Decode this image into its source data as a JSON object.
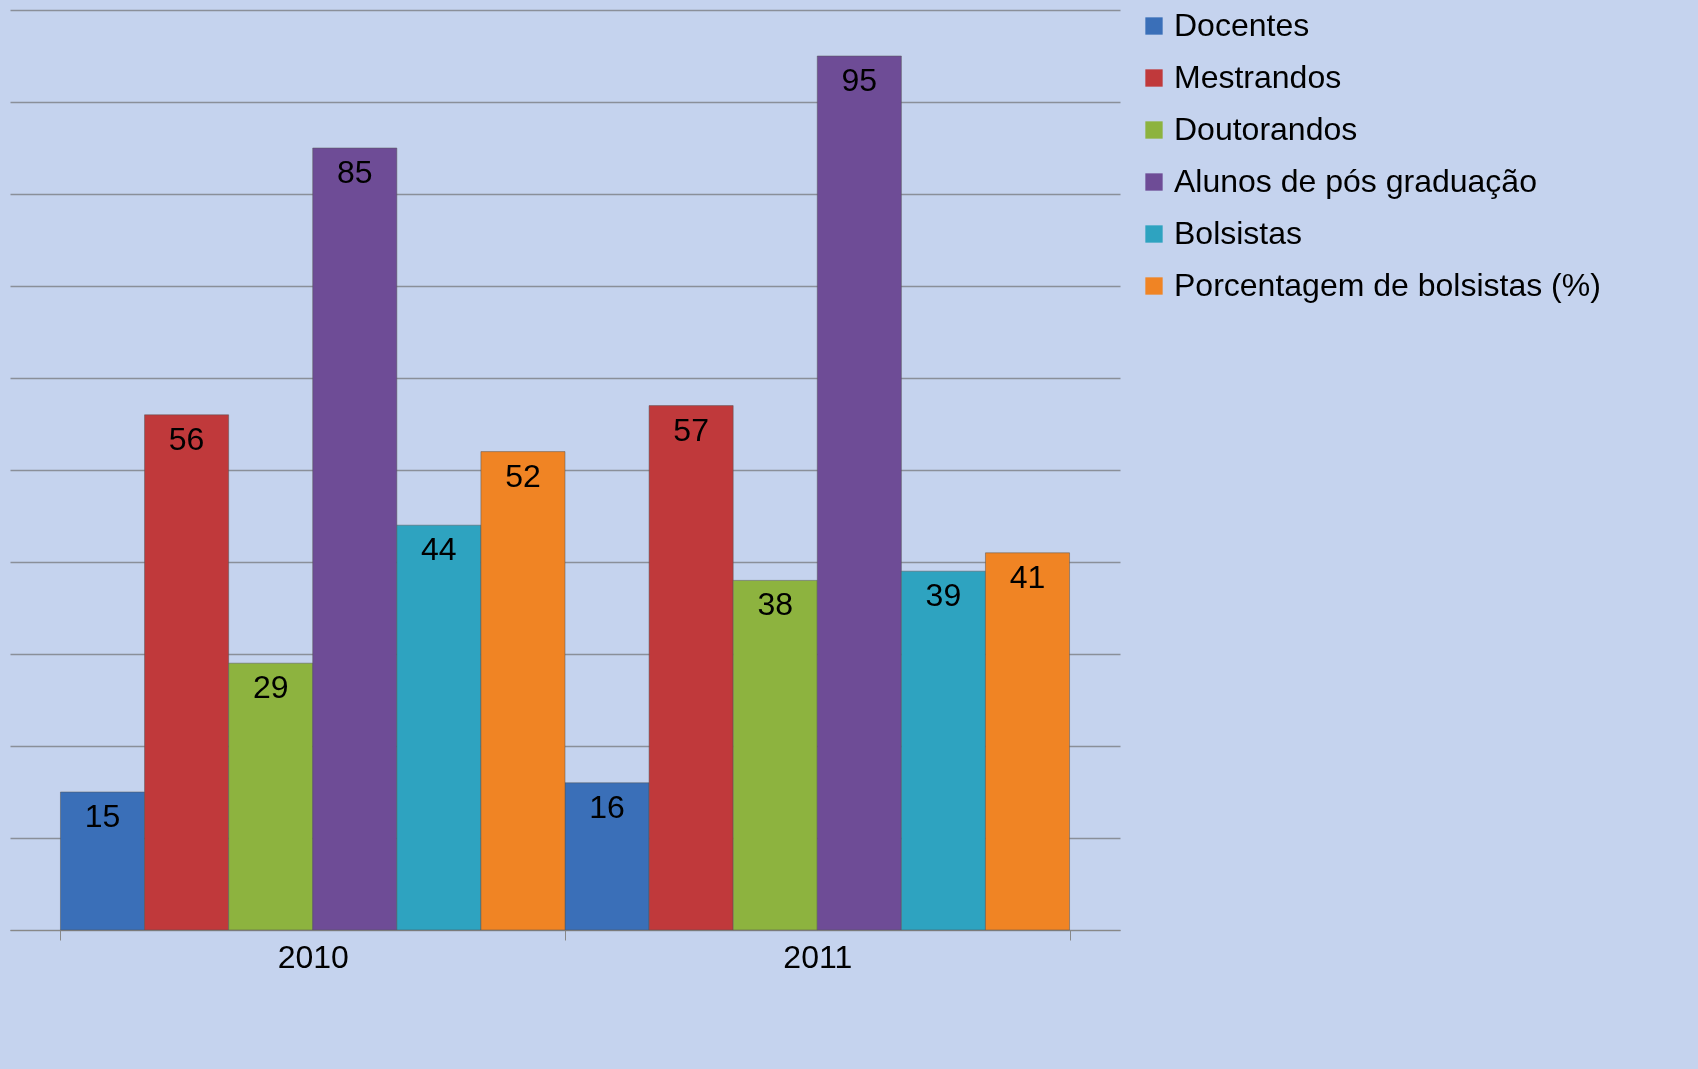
{
  "chart_data": {
    "type": "bar",
    "categories": [
      "2010",
      "2011"
    ],
    "series": [
      {
        "name": "Docentes",
        "color": "#3a6fb8",
        "values": [
          15,
          16
        ]
      },
      {
        "name": "Mestrandos",
        "color": "#c0393b",
        "values": [
          56,
          57
        ]
      },
      {
        "name": "Doutorandos",
        "color": "#8db33f",
        "values": [
          29,
          38
        ]
      },
      {
        "name": "Alunos de pós graduação",
        "color": "#6e4c96",
        "values": [
          85,
          95
        ]
      },
      {
        "name": "Bolsistas",
        "color": "#2ea3c0",
        "values": [
          44,
          39
        ]
      },
      {
        "name": "Porcentagem de bolsistas (%)",
        "color": "#f08424",
        "values": [
          52,
          41
        ]
      }
    ],
    "ylim": [
      0,
      100
    ],
    "yticks": [
      {
        "value": 0,
        "label": null
      },
      {
        "value": 10,
        "label": null
      },
      {
        "value": 20,
        "label": null
      },
      {
        "value": 30,
        "label": null
      },
      {
        "value": 40,
        "label": null
      },
      {
        "value": 50,
        "label": null
      },
      {
        "value": 60,
        "label": null
      },
      {
        "value": 70,
        "label": null
      },
      {
        "value": 80,
        "label": null
      },
      {
        "value": 90,
        "label": null
      },
      {
        "value": 100,
        "label": null
      }
    ],
    "grid": "y",
    "legend": "right",
    "data_labels": true,
    "tick_labels": "x"
  }
}
